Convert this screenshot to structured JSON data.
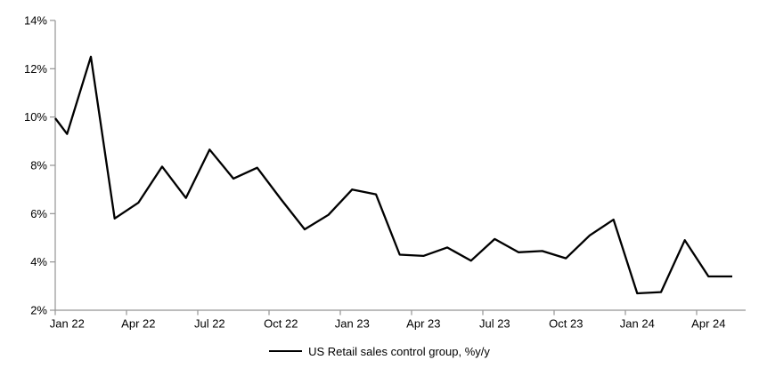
{
  "chart_data": {
    "type": "line",
    "title": "",
    "xlabel": "",
    "ylabel": "",
    "x": [
      "Jan 22",
      "Feb 22",
      "Mar 22",
      "Apr 22",
      "May 22",
      "Jun 22",
      "Jul 22",
      "Aug 22",
      "Sep 22",
      "Oct 22",
      "Nov 22",
      "Dec 22",
      "Jan 23",
      "Feb 23",
      "Mar 23",
      "Apr 23",
      "May 23",
      "Jun 23",
      "Jul 23",
      "Aug 23",
      "Sep 23",
      "Oct 23",
      "Nov 23",
      "Dec 23",
      "Jan 24",
      "Feb 24",
      "Mar 24",
      "Apr 24",
      "May 24"
    ],
    "series": [
      {
        "name": "US Retail sales control group, %y/y",
        "values": [
          9.3,
          12.5,
          5.8,
          6.45,
          7.95,
          6.65,
          8.65,
          7.45,
          7.9,
          6.6,
          5.35,
          5.95,
          7.0,
          6.8,
          4.3,
          4.25,
          4.6,
          4.05,
          4.95,
          4.4,
          4.45,
          4.15,
          5.1,
          5.75,
          2.7,
          2.75,
          4.9,
          3.4,
          3.4
        ]
      }
    ],
    "clipped_start_value": 9.95,
    "ylim": [
      2,
      14
    ],
    "y_ticks": [
      "2%",
      "4%",
      "6%",
      "8%",
      "10%",
      "12%",
      "14%"
    ],
    "y_tick_values": [
      2,
      4,
      6,
      8,
      10,
      12,
      14
    ],
    "x_tick_labels": [
      "Jan 22",
      "Apr 22",
      "Jul 22",
      "Oct 22",
      "Jan 23",
      "Apr 23",
      "Jul 23",
      "Oct 23",
      "Jan 24",
      "Apr 24"
    ],
    "x_tick_month_indices": [
      0,
      3,
      6,
      9,
      12,
      15,
      18,
      21,
      24,
      27
    ],
    "grid": false,
    "legend": {
      "label": "US Retail sales control group, %y/y",
      "position": "bottom-center"
    },
    "colors": {
      "line": "#000000",
      "axis": "#949494",
      "text": "#000000",
      "background": "#FFFFFF"
    }
  }
}
